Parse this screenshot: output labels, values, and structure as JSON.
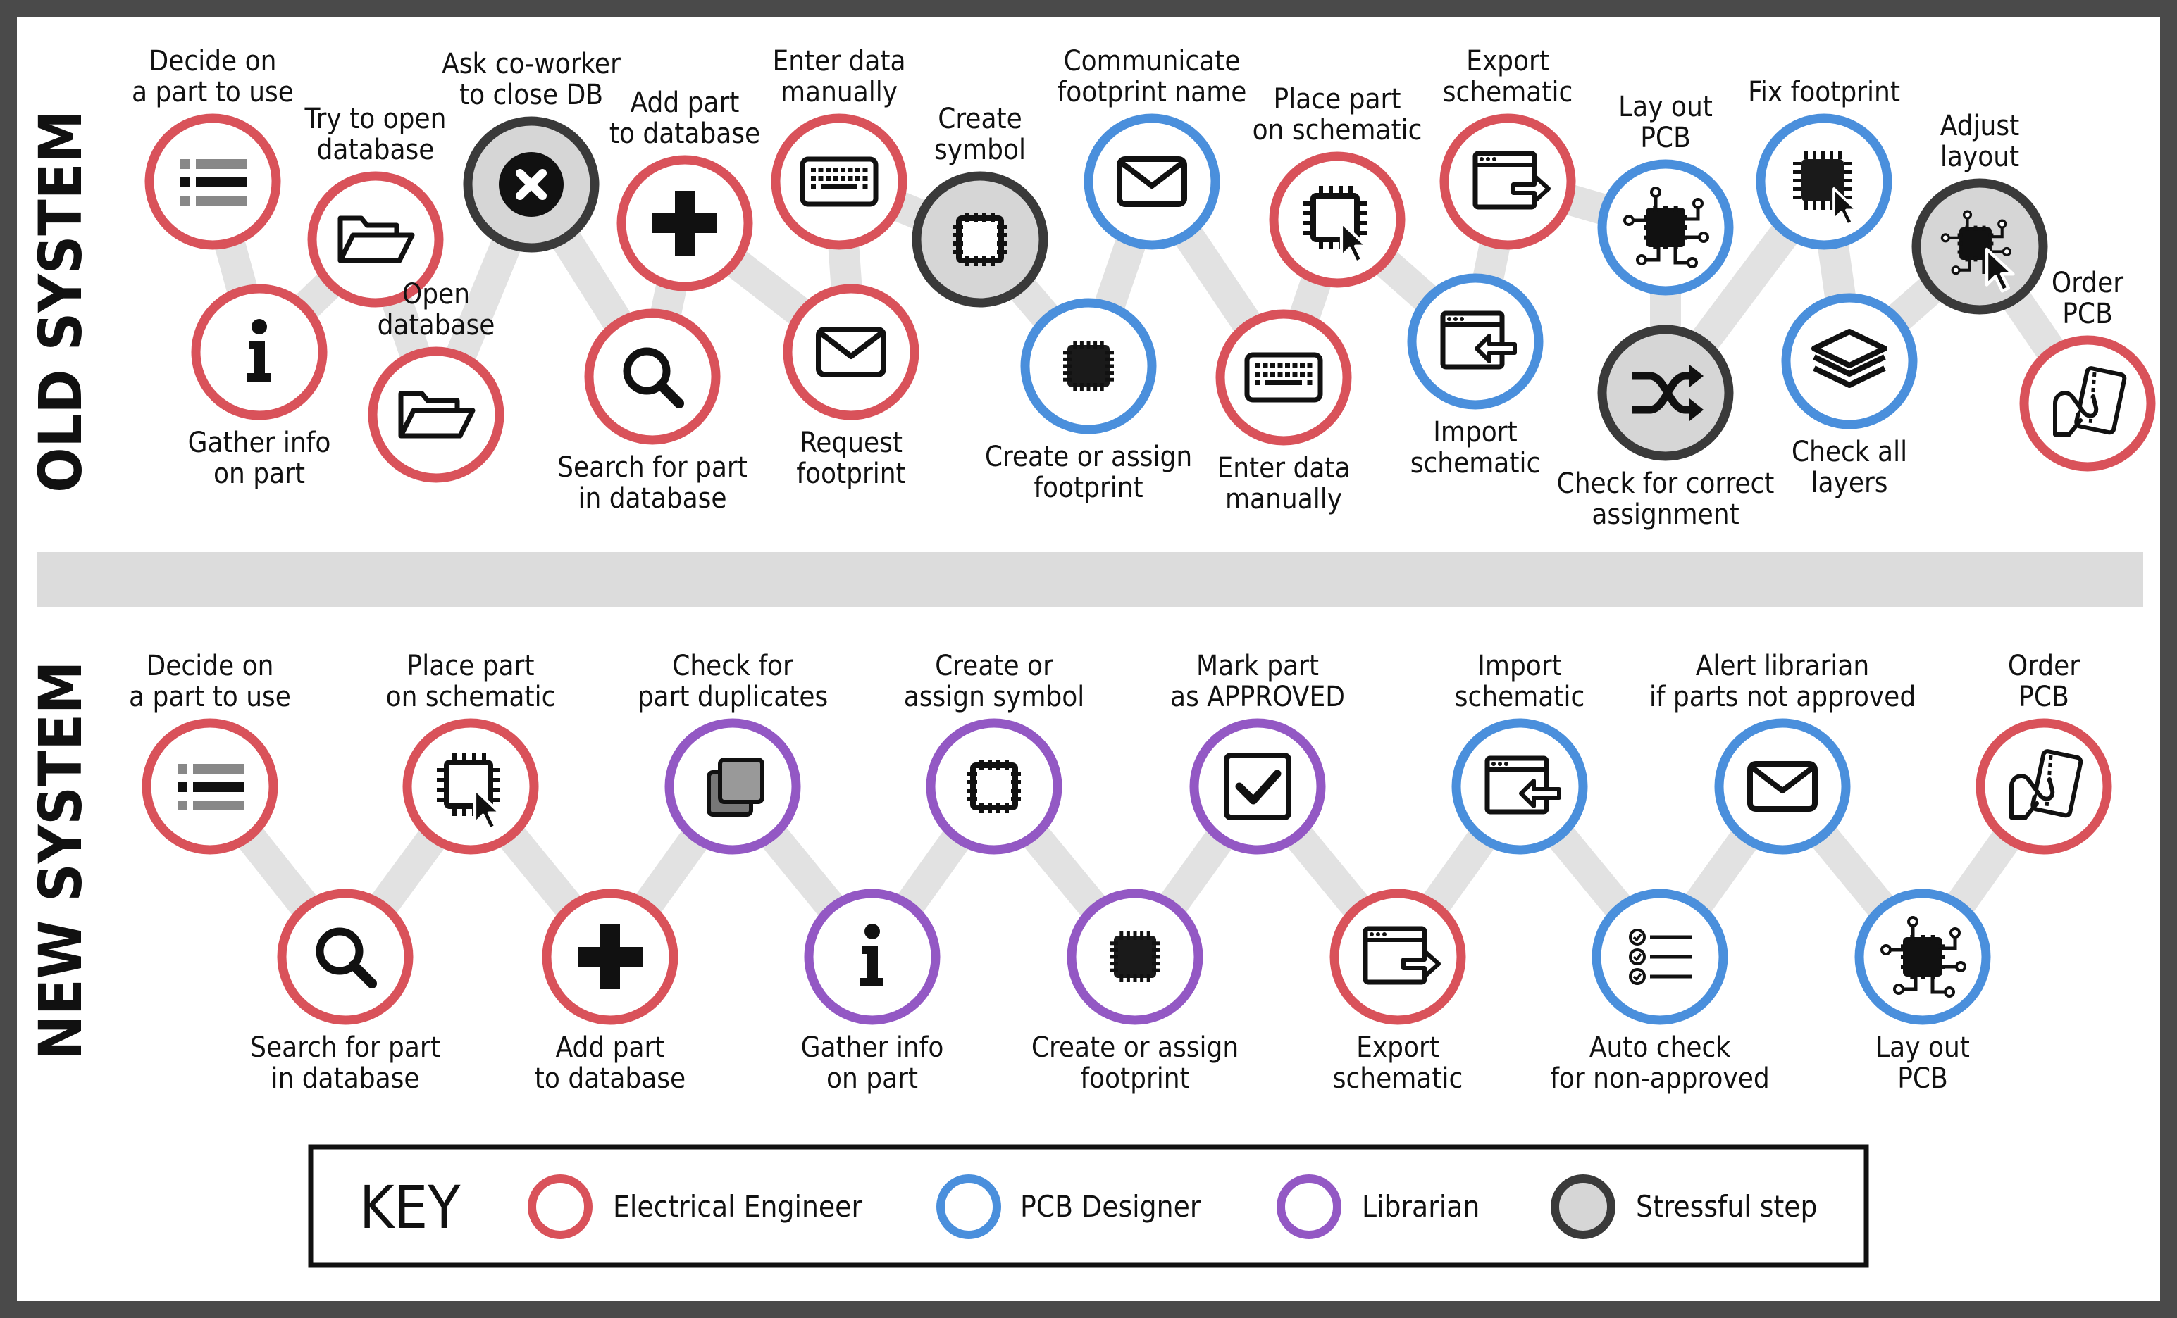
{
  "colors": {
    "engineer": "#d9525a",
    "designer": "#4a8fdc",
    "librarian": "#9358c4",
    "stress_ring": "#3a3a3a",
    "stress_fill": "#d6d6d6",
    "path": "#e2e2e2",
    "text": "#111111",
    "panel": "#ffffff",
    "frame": "#4a4a4a"
  },
  "sections": {
    "old_label": "OLD SYSTEM",
    "new_label": "NEW SYSTEM"
  },
  "old_steps": [
    {
      "label": [
        "Decide on",
        "a part to use"
      ],
      "role": "engineer",
      "icon": "list-icon",
      "stress": false
    },
    {
      "label": [
        "Gather info",
        "on part"
      ],
      "role": "engineer",
      "icon": "info-icon",
      "stress": false
    },
    {
      "label": [
        "Try to open",
        "database"
      ],
      "role": "engineer",
      "icon": "folder-open-icon",
      "stress": false
    },
    {
      "label": [
        "Open",
        "database"
      ],
      "role": "engineer",
      "icon": "folder-open-icon",
      "stress": false
    },
    {
      "label": [
        "Ask co-worker",
        "to close DB"
      ],
      "role": "engineer",
      "icon": "close-circle-icon",
      "stress": true
    },
    {
      "label": [
        "Search for part",
        "in database"
      ],
      "role": "engineer",
      "icon": "search-icon",
      "stress": false
    },
    {
      "label": [
        "Add part",
        "to database"
      ],
      "role": "engineer",
      "icon": "plus-icon",
      "stress": false
    },
    {
      "label": [
        "Request",
        "footprint"
      ],
      "role": "engineer",
      "icon": "envelope-icon",
      "stress": false
    },
    {
      "label": [
        "Enter data",
        "manually"
      ],
      "role": "engineer",
      "icon": "keyboard-icon",
      "stress": false
    },
    {
      "label": [
        "Create",
        "symbol"
      ],
      "role": "engineer",
      "icon": "chip-outline-icon",
      "stress": true
    },
    {
      "label": [
        "Create or assign",
        "footprint"
      ],
      "role": "designer",
      "icon": "chip-solid-icon",
      "stress": false
    },
    {
      "label": [
        "Communicate",
        "footprint name"
      ],
      "role": "designer",
      "icon": "envelope-icon",
      "stress": false
    },
    {
      "label": [
        "Enter data",
        "manually"
      ],
      "role": "engineer",
      "icon": "keyboard-icon",
      "stress": false
    },
    {
      "label": [
        "Place part",
        "on schematic"
      ],
      "role": "engineer",
      "icon": "chip-cursor-icon",
      "stress": false
    },
    {
      "label": [
        "Import",
        "schematic"
      ],
      "role": "designer",
      "icon": "import-window-icon",
      "stress": false
    },
    {
      "label": [
        "Export",
        "schematic"
      ],
      "role": "engineer",
      "icon": "export-window-icon",
      "stress": false
    },
    {
      "label": [
        "Lay out",
        "PCB"
      ],
      "role": "designer",
      "icon": "circuit-icon",
      "stress": false
    },
    {
      "label": [
        "Check for correct",
        "assignment"
      ],
      "role": "designer",
      "icon": "shuffle-icon",
      "stress": true
    },
    {
      "label": [
        "Fix footprint"
      ],
      "role": "designer",
      "icon": "chip-solid-cursor-icon",
      "stress": false
    },
    {
      "label": [
        "Check all",
        "layers"
      ],
      "role": "designer",
      "icon": "layers-icon",
      "stress": false
    },
    {
      "label": [
        "Adjust",
        "layout"
      ],
      "role": "designer",
      "icon": "circuit-cursor-icon",
      "stress": true
    },
    {
      "label": [
        "Order",
        "PCB"
      ],
      "role": "engineer",
      "icon": "card-payment-icon",
      "stress": false
    }
  ],
  "new_steps": [
    {
      "label": [
        "Decide on",
        "a part to use"
      ],
      "role": "engineer",
      "icon": "list-icon",
      "stress": false
    },
    {
      "label": [
        "Search for part",
        "in database"
      ],
      "role": "engineer",
      "icon": "search-icon",
      "stress": false
    },
    {
      "label": [
        "Place part",
        "on schematic"
      ],
      "role": "engineer",
      "icon": "chip-cursor-icon",
      "stress": false
    },
    {
      "label": [
        "Add part",
        "to database"
      ],
      "role": "engineer",
      "icon": "plus-icon",
      "stress": false
    },
    {
      "label": [
        "Check for",
        "part duplicates"
      ],
      "role": "librarian",
      "icon": "duplicate-icon",
      "stress": false
    },
    {
      "label": [
        "Gather info",
        "on part"
      ],
      "role": "librarian",
      "icon": "info-icon",
      "stress": false
    },
    {
      "label": [
        "Create or",
        "assign symbol"
      ],
      "role": "librarian",
      "icon": "chip-outline-icon",
      "stress": false
    },
    {
      "label": [
        "Create or assign",
        "footprint"
      ],
      "role": "librarian",
      "icon": "chip-solid-icon",
      "stress": false
    },
    {
      "label": [
        "Mark part",
        "as APPROVED"
      ],
      "role": "librarian",
      "icon": "checkbox-icon",
      "stress": false
    },
    {
      "label": [
        "Export",
        "schematic"
      ],
      "role": "engineer",
      "icon": "export-window-icon",
      "stress": false
    },
    {
      "label": [
        "Import",
        "schematic"
      ],
      "role": "designer",
      "icon": "import-window-icon",
      "stress": false
    },
    {
      "label": [
        "Auto check",
        "for non-approved"
      ],
      "role": "designer",
      "icon": "checklist-icon",
      "stress": false
    },
    {
      "label": [
        "Alert librarian",
        "if parts not approved"
      ],
      "role": "designer",
      "icon": "envelope-icon",
      "stress": false
    },
    {
      "label": [
        "Lay out",
        "PCB"
      ],
      "role": "designer",
      "icon": "circuit-icon",
      "stress": false
    },
    {
      "label": [
        "Order",
        "PCB"
      ],
      "role": "engineer",
      "icon": "card-payment-icon",
      "stress": false
    }
  ],
  "key": {
    "title": "KEY",
    "items": [
      {
        "label": "Electrical Engineer",
        "role": "engineer"
      },
      {
        "label": "PCB Designer",
        "role": "designer"
      },
      {
        "label": "Librarian",
        "role": "librarian"
      },
      {
        "label": "Stressful step",
        "role": "stress"
      }
    ]
  }
}
